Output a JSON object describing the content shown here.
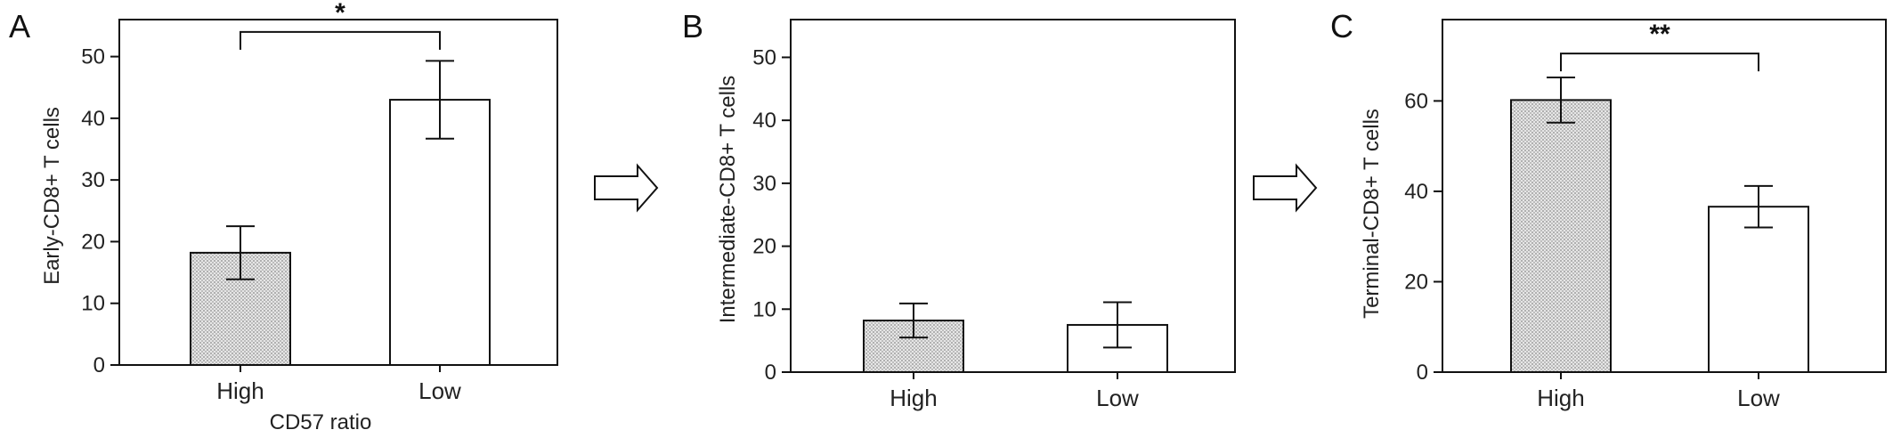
{
  "chart_data": [
    {
      "type": "bar",
      "panel_label": "A",
      "categories": [
        "High",
        "Low"
      ],
      "values": [
        18.2,
        43.0
      ],
      "errors": [
        4.3,
        6.3
      ],
      "patterns": [
        "dotted",
        "blank"
      ],
      "ylabel": "Early-CD8+ T cells",
      "xlabel": "CD57 ratio",
      "ylim": [
        0,
        56
      ],
      "yticks": [
        0,
        10,
        20,
        30,
        40,
        50
      ],
      "significance": {
        "from": 0,
        "to": 1,
        "label": "*",
        "value": 54
      }
    },
    {
      "type": "bar",
      "panel_label": "B",
      "categories": [
        "High",
        "Low"
      ],
      "values": [
        8.2,
        7.5
      ],
      "errors": [
        2.7,
        3.6
      ],
      "patterns": [
        "dotted",
        "blank"
      ],
      "ylabel": "Intermediate-CD8+ T cells",
      "xlabel": "",
      "ylim": [
        0,
        56
      ],
      "yticks": [
        0,
        10,
        20,
        30,
        40,
        50
      ]
    },
    {
      "type": "bar",
      "panel_label": "C",
      "categories": [
        "High",
        "Low"
      ],
      "values": [
        60.2,
        36.6
      ],
      "errors": [
        5.0,
        4.6
      ],
      "patterns": [
        "dotted",
        "blank"
      ],
      "ylabel": "Terminal-CD8+ T cells",
      "xlabel": "",
      "ylim": [
        0,
        78
      ],
      "yticks": [
        0,
        20,
        40,
        60
      ],
      "significance": {
        "from": 0,
        "to": 1,
        "label": "**",
        "value": 70.5
      }
    }
  ],
  "arrows": [
    {
      "name": "flow-arrow-a-to-b",
      "direction": "right"
    },
    {
      "name": "flow-arrow-b-to-c",
      "direction": "right"
    }
  ],
  "colors": {
    "axis": "#222222",
    "bar_fill_dotted": "#d9d9d9",
    "bar_fill_blank": "#ffffff",
    "stroke": "#111111"
  }
}
